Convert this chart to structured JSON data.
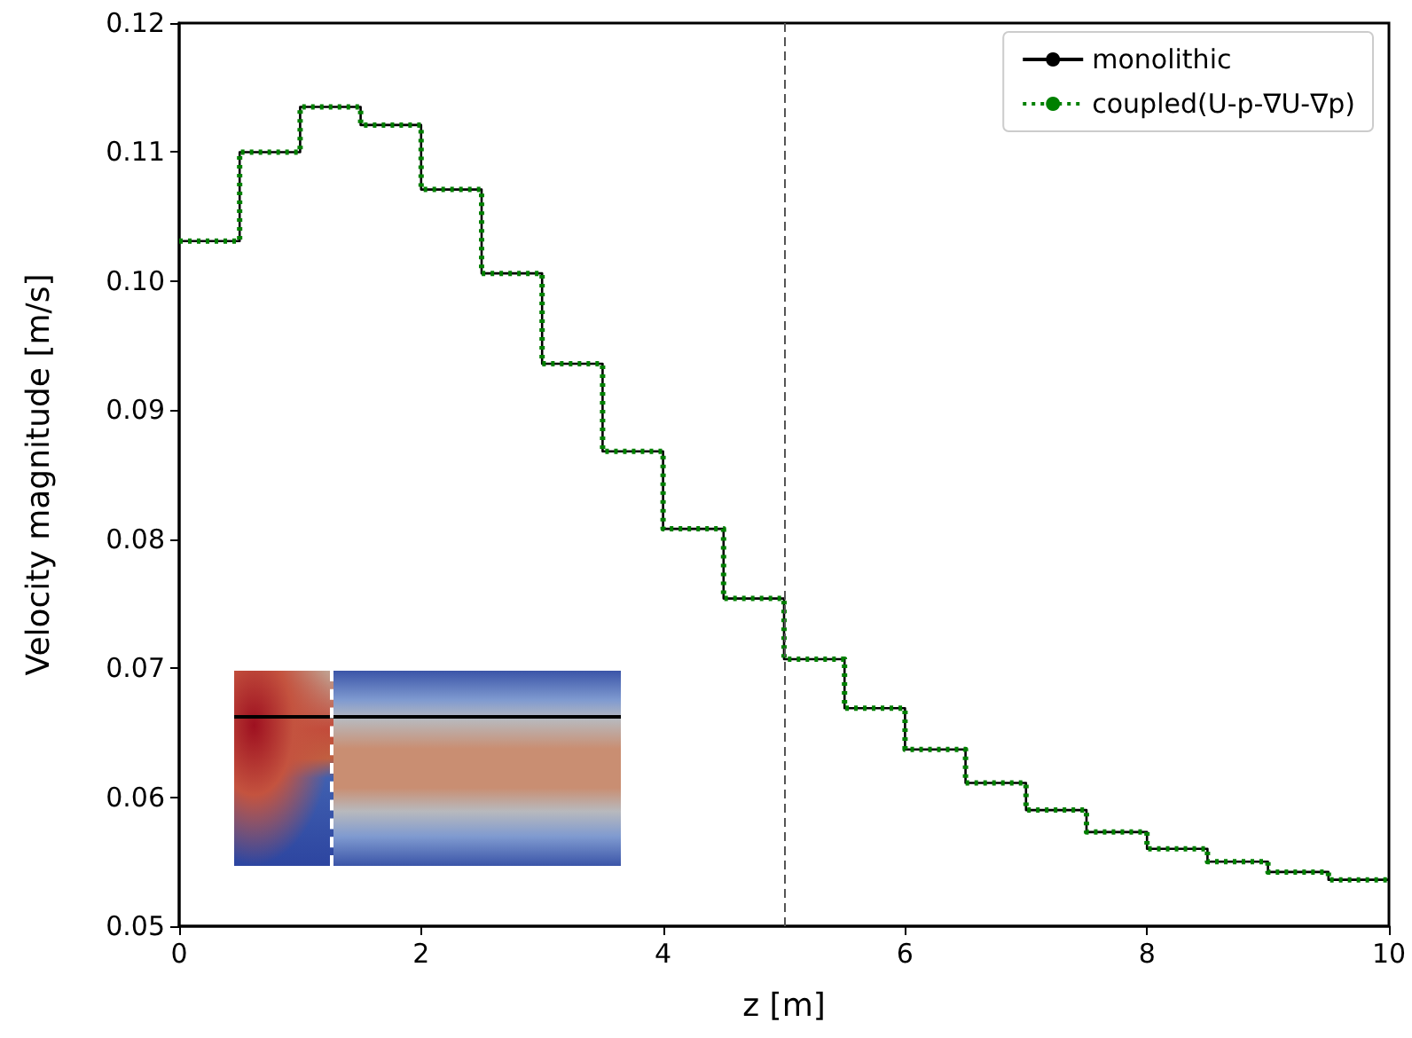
{
  "chart_data": {
    "type": "step",
    "xlabel": "z [m]",
    "ylabel": "Velocity magnitude [m/s]",
    "x": [
      0,
      0.5,
      1,
      1.5,
      2,
      2.5,
      3,
      3.5,
      4,
      4.5,
      5,
      5.5,
      6,
      6.5,
      7,
      7.5,
      8,
      8.5,
      9,
      9.5,
      10
    ],
    "series": [
      {
        "name": "monolithic",
        "color": "#000000",
        "line_style": "solid",
        "values": [
          0.1031,
          0.11,
          0.1135,
          0.1121,
          0.1071,
          0.1006,
          0.0936,
          0.0868,
          0.0808,
          0.0754,
          0.0707,
          0.0669,
          0.0637,
          0.0611,
          0.059,
          0.0573,
          0.056,
          0.055,
          0.0542,
          0.0536,
          0.0536
        ]
      },
      {
        "name": "coupled(U-p-∇U-∇p)",
        "color": "#008000",
        "line_style": "dotted",
        "values": [
          0.1031,
          0.11,
          0.1135,
          0.1121,
          0.1071,
          0.1006,
          0.0936,
          0.0868,
          0.0808,
          0.0754,
          0.0707,
          0.0669,
          0.0637,
          0.0611,
          0.059,
          0.0573,
          0.056,
          0.055,
          0.0542,
          0.0536,
          0.0536
        ]
      }
    ],
    "xlim": [
      0,
      10
    ],
    "xticks": [
      0,
      2,
      4,
      6,
      8,
      10
    ],
    "ylim": [
      0.05,
      0.12
    ],
    "yticks": [
      0.05,
      0.06,
      0.07,
      0.08,
      0.09,
      {
        "value": 0.1,
        "label": "0.10"
      },
      0.11,
      0.12
    ],
    "ref_lines": [
      {
        "axis": "x",
        "value": 5,
        "color": "#555555",
        "line_style": "dashed"
      }
    ],
    "legend": "top right",
    "grid": false,
    "marker": "none"
  }
}
